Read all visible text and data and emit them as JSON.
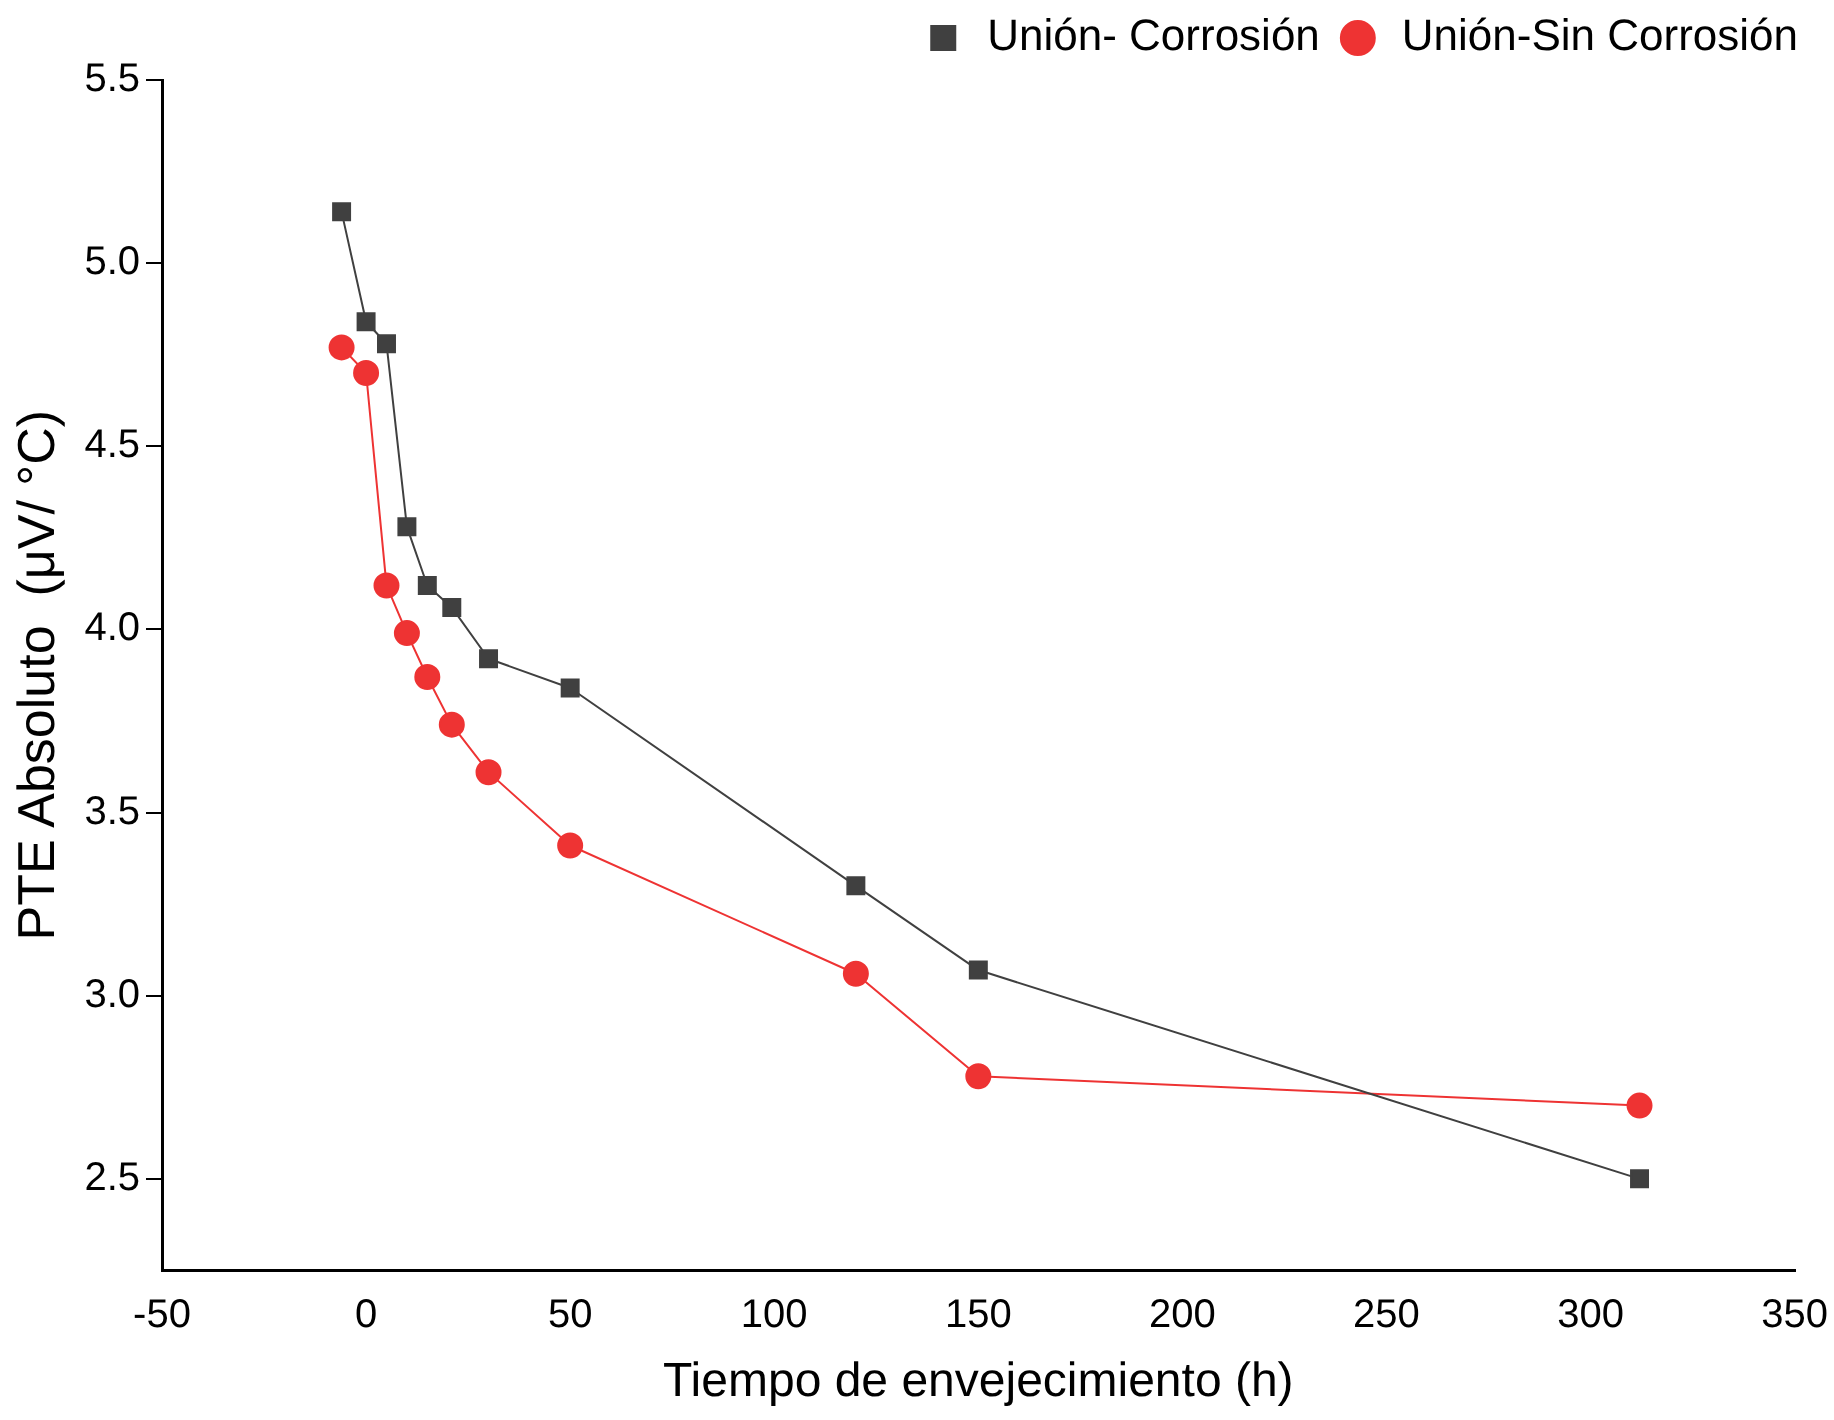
{
  "chart_data": {
    "type": "line",
    "xlabel": "Tiempo de envejecimiento (h)",
    "ylabel": "PTE Absoluto  (μV/ °C)",
    "xlim": [
      -50,
      350
    ],
    "xticks": [
      -50,
      0,
      50,
      100,
      150,
      200,
      250,
      300,
      350
    ],
    "ylim": [
      2.25,
      5.5
    ],
    "yticks": [
      {
        "value": 2.5,
        "label": "2.5"
      },
      {
        "value": 3,
        "label": "3.0"
      },
      {
        "value": 3.5,
        "label": "3.5"
      },
      {
        "value": 4,
        "label": "4.0"
      },
      {
        "value": 4.5,
        "label": "4.5"
      },
      {
        "value": 5,
        "label": "5.0"
      },
      {
        "value": 5.5,
        "label": "5.5"
      }
    ],
    "grid": false,
    "legend": "top right",
    "line_style": "solid",
    "series": [
      {
        "name": "Unión- Corrosión",
        "color": "#404040",
        "marker": "square",
        "x": [
          -6,
          0,
          5,
          10,
          15,
          21,
          30,
          50,
          120,
          150,
          312
        ],
        "values": [
          5.14,
          4.84,
          4.78,
          4.28,
          4.12,
          4.06,
          3.92,
          3.84,
          3.3,
          3.07,
          2.5
        ]
      },
      {
        "name": "Unión-Sin Corrosión",
        "color": "#ee3333",
        "marker": "circle",
        "x": [
          -6,
          0,
          5,
          10,
          15,
          21,
          30,
          50,
          120,
          150,
          312
        ],
        "values": [
          4.77,
          4.7,
          4.12,
          3.99,
          3.87,
          3.74,
          3.61,
          3.41,
          3.06,
          2.78,
          2.7
        ]
      }
    ]
  }
}
